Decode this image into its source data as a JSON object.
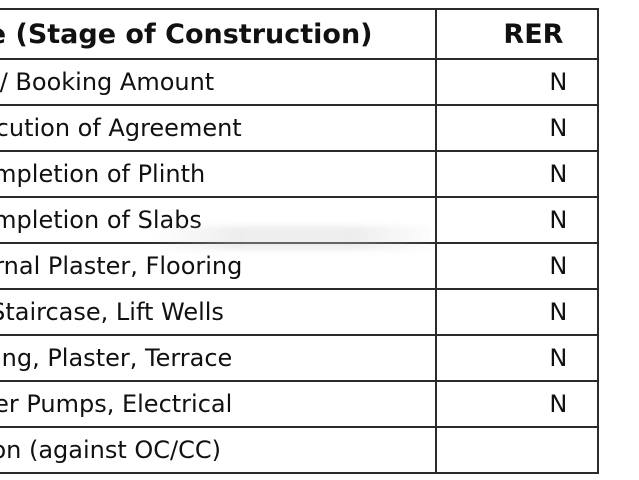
{
  "table": {
    "headers": {
      "stage": "one (Stage of Construction)",
      "rera": "RER"
    },
    "rows": [
      {
        "stage": "vance / Booking Amount",
        "rera": "N"
      },
      {
        "stage": "er Execution of Agreement",
        "rera": "N"
      },
      {
        "stage": "On Completion of Plinth",
        "rera": "N"
      },
      {
        "stage": "On Completion of Slabs",
        "rera": "N"
      },
      {
        "stage": "s, Internal Plaster, Flooring",
        "rera": "N"
      },
      {
        "stage": "itary, Staircase, Lift Wells",
        "rera": "N"
      },
      {
        "stage": " Plumbing, Plaster, Terrace",
        "rera": "N"
      },
      {
        "stage": "s, Water Pumps, Electrical",
        "rera": "N"
      },
      {
        "stage": "ssession (against OC/CC)",
        "rera": ""
      }
    ]
  }
}
